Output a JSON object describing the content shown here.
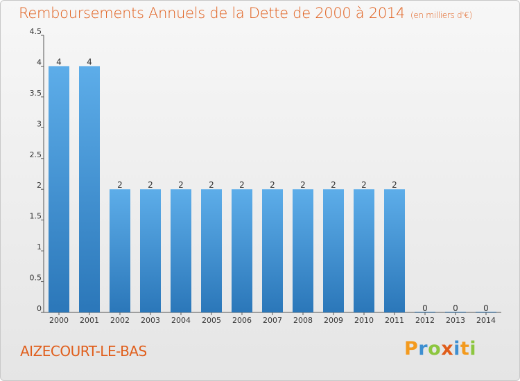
{
  "title": "Remboursements Annuels de la Dette de 2000 à 2014",
  "subtitle": "(en milliers d'€)",
  "commune": "AIZECOURT-LE-BAS",
  "logo": {
    "letters": [
      "P",
      "r",
      "o",
      "x",
      "i",
      "t",
      "i"
    ],
    "colors": [
      "#f39a1e",
      "#3d8fd1",
      "#8cc63f",
      "#e05d1a",
      "#3d8fd1",
      "#f39a1e",
      "#8cc63f"
    ]
  },
  "colors": {
    "title": "#e05d1a",
    "bar_top": "#5dade9",
    "bar_bottom": "#2b77b9"
  },
  "chart_data": {
    "type": "bar",
    "title": "Remboursements Annuels de la Dette de 2000 à 2014",
    "subtitle": "(en milliers d'€)",
    "categories": [
      "2000",
      "2001",
      "2002",
      "2003",
      "2004",
      "2005",
      "2006",
      "2007",
      "2008",
      "2009",
      "2010",
      "2011",
      "2012",
      "2013",
      "2014"
    ],
    "values": [
      4,
      4,
      2,
      2,
      2,
      2,
      2,
      2,
      2,
      2,
      2,
      2,
      0,
      0,
      0
    ],
    "data_labels": [
      "4",
      "4",
      "2",
      "2",
      "2",
      "2",
      "2",
      "2",
      "2",
      "2",
      "2",
      "2",
      "0",
      "0",
      "0"
    ],
    "yticks": [
      {
        "value": 0,
        "label": "0"
      },
      {
        "value": 0.5,
        "label": "0.5"
      },
      {
        "value": 1,
        "label": "1"
      },
      {
        "value": 1.5,
        "label": "1.5"
      },
      {
        "value": 2,
        "label": "2"
      },
      {
        "value": 2.5,
        "label": "2.5"
      },
      {
        "value": 3,
        "label": "3"
      },
      {
        "value": 3.5,
        "label": "3.5"
      },
      {
        "value": 4,
        "label": "4"
      },
      {
        "value": 4.5,
        "label": "4.5"
      }
    ],
    "ylim": [
      0,
      4.5
    ],
    "xlabel": "",
    "ylabel": "",
    "grid": false,
    "legend": "none"
  }
}
